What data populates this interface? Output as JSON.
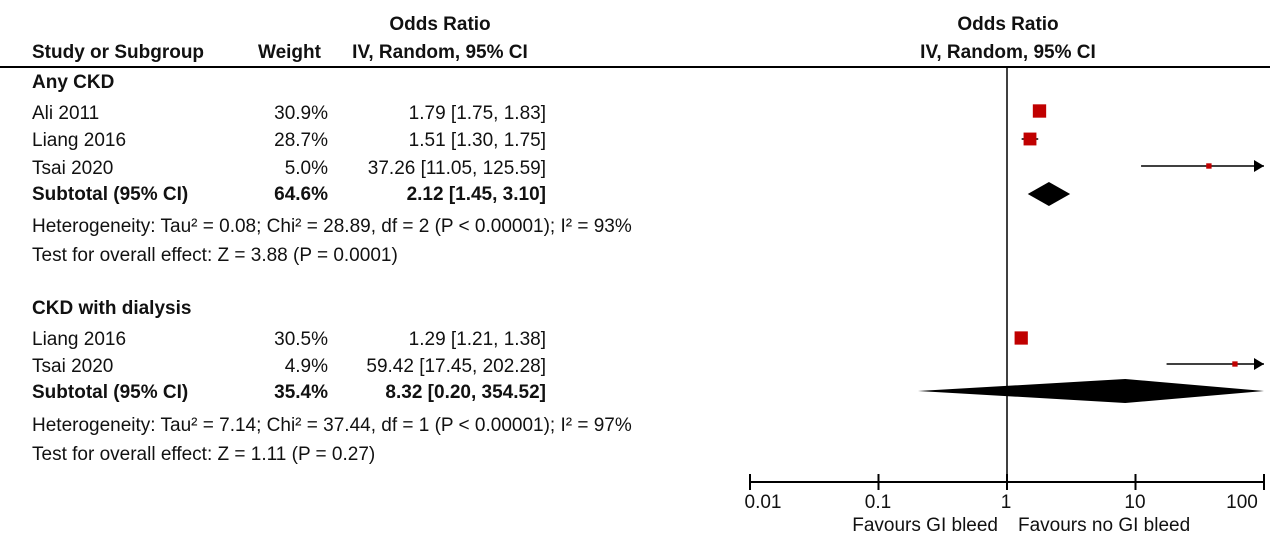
{
  "header": {
    "col_study": "Study or Subgroup",
    "col_weight": "Weight",
    "col_or_title": "Odds Ratio",
    "col_or_method": "IV, Random, 95% CI",
    "plot_title": "Odds Ratio",
    "plot_method": "IV, Random, 95% CI"
  },
  "groups": [
    {
      "name": "Any CKD",
      "studies": [
        {
          "study": "Ali 2011",
          "weight": "30.9%",
          "ci_text": "1.79 [1.75, 1.83]"
        },
        {
          "study": "Liang 2016",
          "weight": "28.7%",
          "ci_text": "1.51 [1.30, 1.75]"
        },
        {
          "study": "Tsai 2020",
          "weight": "5.0%",
          "ci_text": "37.26 [11.05, 125.59]"
        }
      ],
      "subtotal_label": "Subtotal (95% CI)",
      "subtotal_weight": "64.6%",
      "subtotal_ci_text": "2.12 [1.45, 3.10]",
      "heterogeneity": "Heterogeneity: Tau² = 0.08; Chi² = 28.89, df = 2 (P < 0.00001); I² = 93%",
      "overall_effect": "Test for overall effect: Z = 3.88 (P = 0.0001)"
    },
    {
      "name": "CKD with dialysis",
      "studies": [
        {
          "study": "Liang 2016",
          "weight": "30.5%",
          "ci_text": "1.29 [1.21, 1.38]"
        },
        {
          "study": "Tsai 2020",
          "weight": "4.9%",
          "ci_text": "59.42 [17.45, 202.28]"
        }
      ],
      "subtotal_label": "Subtotal (95% CI)",
      "subtotal_weight": "35.4%",
      "subtotal_ci_text": "8.32 [0.20, 354.52]",
      "heterogeneity": "Heterogeneity: Tau² = 7.14; Chi² = 37.44, df = 1 (P < 0.00001); I² = 97%",
      "overall_effect": "Test for overall effect: Z = 1.11 (P = 0.27)"
    }
  ],
  "axis": {
    "ticks": [
      "0.01",
      "0.1",
      "1",
      "10",
      "100"
    ],
    "favours_left": "Favours GI bleed",
    "favours_right": "Favours no GI bleed"
  },
  "chart_data": {
    "type": "forest",
    "scale": "log",
    "xlim": [
      0.01,
      100
    ],
    "null_line": 1,
    "colors": {
      "study_marker": "#c00000",
      "diamond": "#000000"
    },
    "studies": [
      {
        "group": "Any CKD",
        "study": "Ali 2011",
        "or": 1.79,
        "lo": 1.75,
        "hi": 1.83,
        "weight": 30.9
      },
      {
        "group": "Any CKD",
        "study": "Liang 2016",
        "or": 1.51,
        "lo": 1.3,
        "hi": 1.75,
        "weight": 28.7
      },
      {
        "group": "Any CKD",
        "study": "Tsai 2020",
        "or": 37.26,
        "lo": 11.05,
        "hi": 125.59,
        "weight": 5.0
      },
      {
        "group": "CKD with dialysis",
        "study": "Liang 2016",
        "or": 1.29,
        "lo": 1.21,
        "hi": 1.38,
        "weight": 30.5
      },
      {
        "group": "CKD with dialysis",
        "study": "Tsai 2020",
        "or": 59.42,
        "lo": 17.45,
        "hi": 202.28,
        "weight": 4.9
      }
    ],
    "subtotals": [
      {
        "group": "Any CKD",
        "or": 2.12,
        "lo": 1.45,
        "hi": 3.1,
        "weight": 64.6
      },
      {
        "group": "CKD with dialysis",
        "or": 8.32,
        "lo": 0.2,
        "hi": 354.52,
        "weight": 35.4
      }
    ]
  }
}
